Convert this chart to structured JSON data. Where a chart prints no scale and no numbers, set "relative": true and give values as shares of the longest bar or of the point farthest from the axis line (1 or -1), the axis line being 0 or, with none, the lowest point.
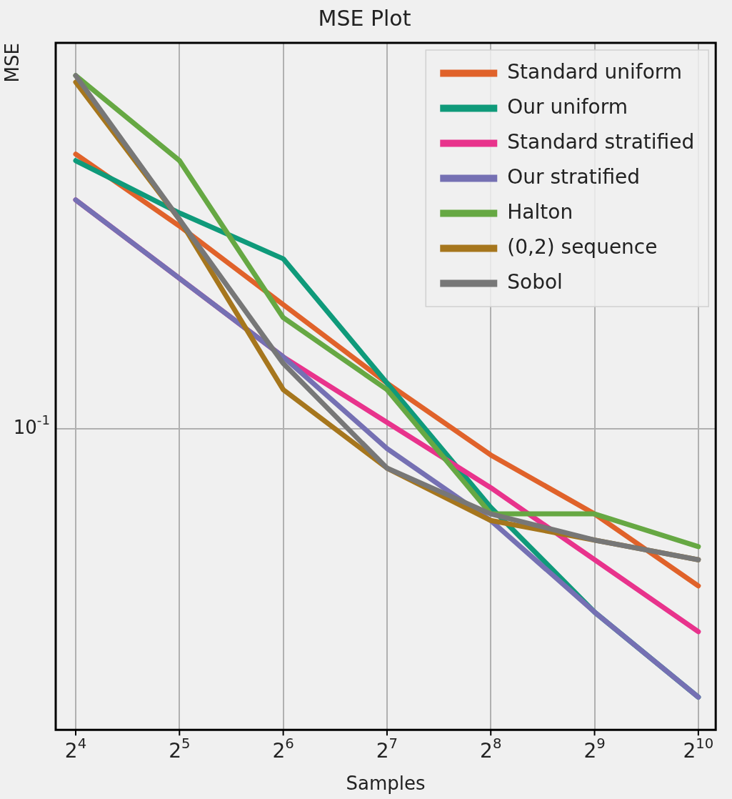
{
  "chart_data": {
    "type": "line",
    "title": "MSE Plot",
    "xlabel": "Samples",
    "ylabel": "MSE",
    "relative": true,
    "log": "x",
    "x": [
      16,
      32,
      64,
      128,
      256,
      512,
      1024
    ],
    "xlim": [
      14,
      1150
    ],
    "xticks": [
      {
        "value": 16,
        "label": "2$^{4}$"
      },
      {
        "value": 32,
        "label": "2$^{5}$"
      },
      {
        "value": 64,
        "label": "2$^{6}$"
      },
      {
        "value": 128,
        "label": "2$^{7}$"
      },
      {
        "value": 256,
        "label": "2$^{8}$"
      },
      {
        "value": 512,
        "label": "2$^{9}$"
      },
      {
        "value": 1024,
        "label": "2$^{10}$"
      }
    ],
    "grid": "x",
    "legend": "top right",
    "marker": "none",
    "line_style": "solid",
    "ref_lines": [
      {
        "axis": "y",
        "value": 0.46,
        "color": "#b0b0b0"
      }
    ],
    "annotations": [
      "10$^{-1}$"
    ],
    "series": [
      {
        "name": "Standard uniform",
        "color": "#e0622a",
        "values": [
          0.88,
          0.77,
          0.65,
          0.53,
          0.42,
          0.33,
          0.22
        ]
      },
      {
        "name": "Our uniform",
        "color": "#0f9a7a",
        "values": [
          0.87,
          0.79,
          0.72,
          0.53,
          0.34,
          0.18,
          0.05
        ]
      },
      {
        "name": "Standard stratified",
        "color": "#e8338c",
        "values": [
          0.81,
          0.69,
          0.57,
          0.47,
          0.37,
          0.26,
          0.15
        ]
      },
      {
        "name": "Our stratified",
        "color": "#7570b3",
        "values": [
          0.81,
          0.69,
          0.57,
          0.43,
          0.32,
          0.18,
          0.05
        ]
      },
      {
        "name": "Halton",
        "color": "#66a843",
        "values": [
          1,
          0.87,
          0.63,
          0.52,
          0.33,
          0.33,
          0.28
        ]
      },
      {
        "name": "(0,2) sequence",
        "color": "#a6761d",
        "values": [
          0.99,
          0.78,
          0.52,
          0.4,
          0.32,
          0.29,
          0.26
        ]
      },
      {
        "name": "Sobol",
        "color": "#777777",
        "values": [
          1,
          0.78,
          0.56,
          0.4,
          0.33,
          0.29,
          0.26
        ]
      }
    ]
  }
}
